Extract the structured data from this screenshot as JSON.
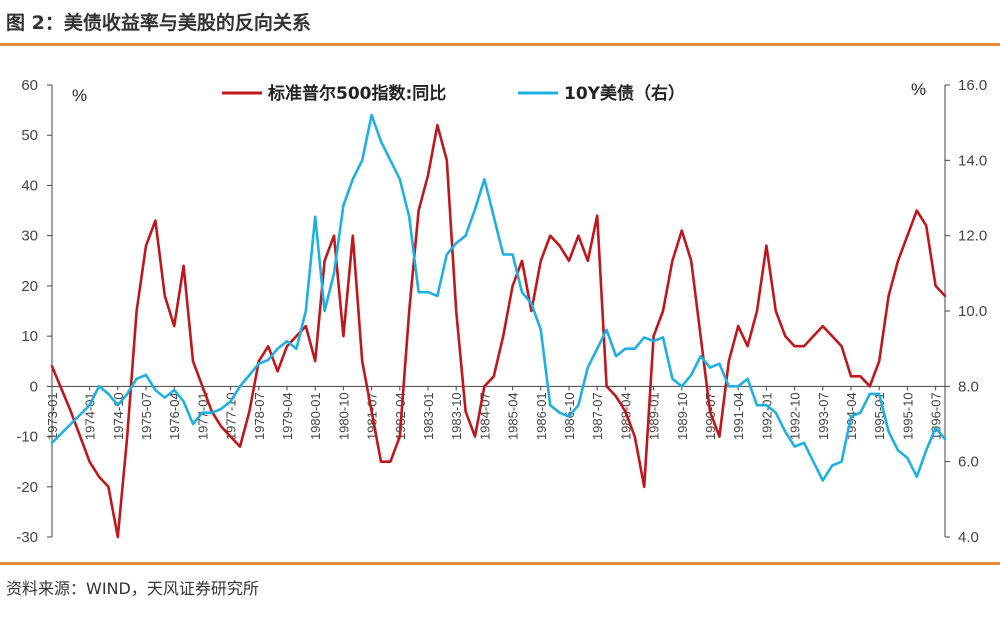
{
  "header": {
    "title": "图 2：美债收益率与美股的反向关系"
  },
  "footer": {
    "source": "资料来源：WIND，天风证券研究所"
  },
  "colors": {
    "accent_rule": "#E98C3A",
    "sp500": "#C0171C",
    "ust10y": "#1FB0E3"
  },
  "chart_data": {
    "type": "line",
    "title": "",
    "left_axis": {
      "unit": "%",
      "ylim": [
        -30,
        60
      ],
      "ticks": [
        "60",
        "50",
        "40",
        "30",
        "20",
        "10",
        "0",
        "-10",
        "-20",
        "-30"
      ]
    },
    "right_axis": {
      "unit": "%",
      "ylim": [
        4.0,
        16.0
      ],
      "ticks": [
        "16.0",
        "14.0",
        "12.0",
        "10.0",
        "8.0",
        "6.0",
        "4.0"
      ]
    },
    "x_tick_labels": [
      "1973-01",
      "1974-01",
      "1974-10",
      "1975-07",
      "1976-04",
      "1977-01",
      "1977-10",
      "1978-07",
      "1979-04",
      "1980-01",
      "1980-10",
      "1981-07",
      "1982-04",
      "1983-01",
      "1983-10",
      "1984-07",
      "1985-04",
      "1986-01",
      "1986-10",
      "1987-07",
      "1988-04",
      "1989-01",
      "1989-10",
      "1990-07",
      "1991-04",
      "1992-01",
      "1992-10",
      "1993-07",
      "1994-04",
      "1995-01",
      "1995-10",
      "1996-07"
    ],
    "legend": [
      "标准普尔500指数:同比",
      "10Y美债（右）"
    ],
    "series": [
      {
        "name": "标准普尔500指数:同比",
        "axis": "left",
        "x": [
          "1973-01",
          "1973-07",
          "1974-01",
          "1974-04",
          "1974-07",
          "1974-10",
          "1975-01",
          "1975-04",
          "1975-07",
          "1975-10",
          "1976-01",
          "1976-04",
          "1976-07",
          "1976-10",
          "1977-01",
          "1977-04",
          "1977-07",
          "1977-10",
          "1978-01",
          "1978-04",
          "1978-07",
          "1978-10",
          "1979-01",
          "1979-04",
          "1979-07",
          "1979-10",
          "1980-01",
          "1980-04",
          "1980-07",
          "1980-10",
          "1981-01",
          "1981-04",
          "1981-07",
          "1981-10",
          "1982-01",
          "1982-04",
          "1982-07",
          "1982-10",
          "1983-01",
          "1983-04",
          "1983-07",
          "1983-10",
          "1984-01",
          "1984-04",
          "1984-07",
          "1984-10",
          "1985-01",
          "1985-04",
          "1985-07",
          "1985-10",
          "1986-01",
          "1986-04",
          "1986-07",
          "1986-10",
          "1987-01",
          "1987-04",
          "1987-07",
          "1987-10",
          "1988-01",
          "1988-04",
          "1988-07",
          "1988-10",
          "1989-01",
          "1989-04",
          "1989-07",
          "1989-10",
          "1990-01",
          "1990-04",
          "1990-07",
          "1990-10",
          "1991-01",
          "1991-04",
          "1991-07",
          "1991-10",
          "1992-01",
          "1992-04",
          "1992-07",
          "1992-10",
          "1993-01",
          "1993-04",
          "1993-07",
          "1993-10",
          "1994-01",
          "1994-04",
          "1994-07",
          "1994-10",
          "1995-01",
          "1995-04",
          "1995-07",
          "1995-10",
          "1996-01",
          "1996-04",
          "1996-07",
          "1996-10"
        ],
        "values": [
          4,
          -5,
          -15,
          -18,
          -20,
          -30,
          -10,
          15,
          28,
          33,
          18,
          12,
          24,
          5,
          0,
          -5,
          -8,
          -10,
          -12,
          -5,
          5,
          8,
          3,
          8,
          10,
          12,
          5,
          25,
          30,
          10,
          30,
          5,
          -5,
          -15,
          -15,
          -10,
          15,
          35,
          42,
          52,
          45,
          15,
          -5,
          -10,
          0,
          2,
          10,
          20,
          25,
          15,
          25,
          30,
          28,
          25,
          30,
          25,
          34,
          0,
          -2,
          -5,
          -10,
          -20,
          10,
          15,
          25,
          31,
          25,
          10,
          -5,
          -10,
          5,
          12,
          8,
          15,
          28,
          15,
          10,
          8,
          8,
          10,
          12,
          10,
          8,
          2,
          2,
          0,
          5,
          18,
          25,
          30,
          35,
          32,
          20,
          18
        ]
      },
      {
        "name": "10Y美债（右）",
        "axis": "right",
        "x": [
          "1973-01",
          "1973-07",
          "1974-01",
          "1974-04",
          "1974-07",
          "1974-10",
          "1975-01",
          "1975-04",
          "1975-07",
          "1975-10",
          "1976-01",
          "1976-04",
          "1976-07",
          "1976-10",
          "1977-01",
          "1977-04",
          "1977-07",
          "1977-10",
          "1978-01",
          "1978-04",
          "1978-07",
          "1978-10",
          "1979-01",
          "1979-04",
          "1979-07",
          "1979-10",
          "1980-01",
          "1980-04",
          "1980-07",
          "1980-10",
          "1981-01",
          "1981-04",
          "1981-07",
          "1981-10",
          "1982-01",
          "1982-04",
          "1982-07",
          "1982-10",
          "1983-01",
          "1983-04",
          "1983-07",
          "1983-10",
          "1984-01",
          "1984-04",
          "1984-07",
          "1984-10",
          "1985-01",
          "1985-04",
          "1985-07",
          "1985-10",
          "1986-01",
          "1986-04",
          "1986-07",
          "1986-10",
          "1987-01",
          "1987-04",
          "1987-07",
          "1987-10",
          "1988-01",
          "1988-04",
          "1988-07",
          "1988-10",
          "1989-01",
          "1989-04",
          "1989-07",
          "1989-10",
          "1990-01",
          "1990-04",
          "1990-07",
          "1990-10",
          "1991-01",
          "1991-04",
          "1991-07",
          "1991-10",
          "1992-01",
          "1992-04",
          "1992-07",
          "1992-10",
          "1993-01",
          "1993-04",
          "1993-07",
          "1993-10",
          "1994-01",
          "1994-04",
          "1994-07",
          "1994-10",
          "1995-01",
          "1995-04",
          "1995-07",
          "1995-10",
          "1996-01",
          "1996-04",
          "1996-07",
          "1996-10"
        ],
        "values": [
          6.5,
          7.0,
          7.5,
          8.0,
          7.8,
          7.5,
          7.8,
          8.2,
          8.3,
          7.9,
          7.7,
          7.9,
          7.6,
          7.0,
          7.3,
          7.3,
          7.4,
          7.6,
          8.0,
          8.3,
          8.6,
          8.7,
          9.0,
          9.2,
          9.0,
          10.0,
          12.5,
          10.0,
          11.0,
          12.8,
          13.5,
          14.0,
          15.2,
          14.5,
          14.0,
          13.5,
          12.5,
          10.5,
          10.5,
          10.4,
          11.5,
          11.8,
          12.0,
          12.7,
          13.5,
          12.5,
          11.5,
          11.5,
          10.5,
          10.2,
          9.5,
          7.5,
          7.3,
          7.2,
          7.5,
          8.5,
          9.0,
          9.5,
          8.8,
          9.0,
          9.0,
          9.3,
          9.2,
          9.3,
          8.2,
          8.0,
          8.3,
          8.8,
          8.5,
          8.6,
          8.0,
          8.0,
          8.2,
          7.5,
          7.5,
          7.3,
          6.8,
          6.4,
          6.5,
          6.0,
          5.5,
          5.9,
          6.0,
          7.2,
          7.3,
          7.8,
          7.8,
          6.8,
          6.3,
          6.1,
          5.6,
          6.3,
          6.9,
          6.6
        ]
      }
    ]
  }
}
